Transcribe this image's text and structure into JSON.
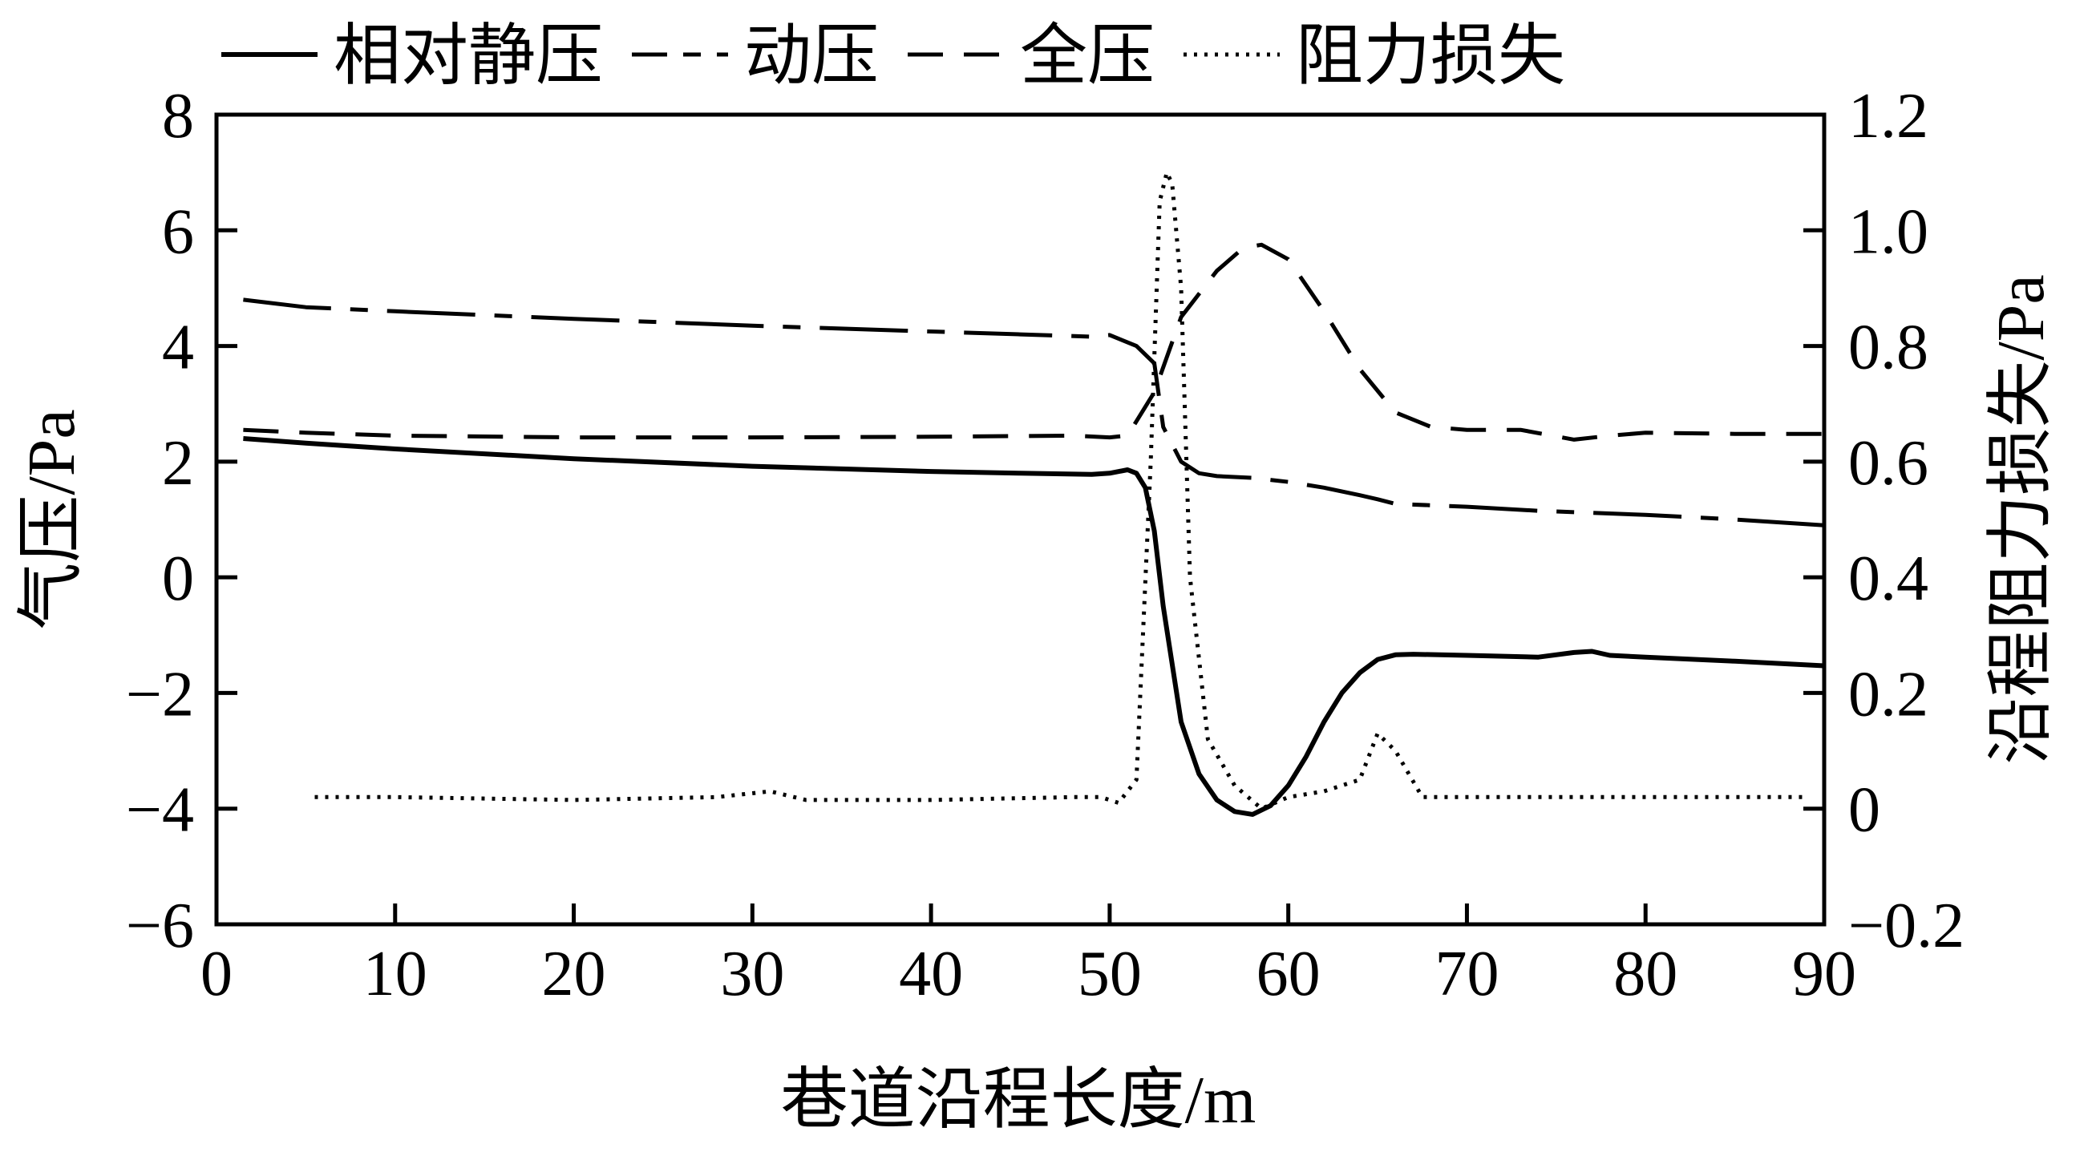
{
  "chart_data": {
    "type": "line",
    "xlabel": "巷道沿程长度/m",
    "ylabel_left": "气压/Pa",
    "ylabel_right": "沿程阻力损失/Pa",
    "xlim": [
      0,
      90
    ],
    "ylim_left": [
      -6,
      8
    ],
    "ylim_right": [
      -0.2,
      1.2
    ],
    "xticks": [
      0,
      10,
      20,
      30,
      40,
      50,
      60,
      70,
      80,
      90
    ],
    "yticks_left": [
      -6,
      -4,
      -2,
      0,
      2,
      4,
      6,
      8
    ],
    "yticks_right": [
      -0.2,
      0,
      0.2,
      0.4,
      0.6,
      0.8,
      1.0,
      1.2
    ],
    "xtick_labels": [
      "0",
      "10",
      "20",
      "30",
      "40",
      "50",
      "60",
      "70",
      "80",
      "90"
    ],
    "ytick_labels_left": [
      "−6",
      "−4",
      "−2",
      "0",
      "2",
      "4",
      "6",
      "8"
    ],
    "ytick_labels_right": [
      "−0.2",
      "0",
      "0.2",
      "0.4",
      "0.6",
      "0.8",
      "1.0",
      "1.2"
    ],
    "legend_position": "top",
    "grid": false,
    "series": [
      {
        "name": "相对静压",
        "axis": "left",
        "style": "solid",
        "x": [
          1.5,
          5,
          10,
          20,
          30,
          40,
          45,
          49,
          50,
          51,
          51.5,
          52,
          52.5,
          53,
          54,
          55,
          56,
          57,
          58,
          59,
          60,
          61,
          62,
          63,
          64,
          65,
          66,
          67,
          70,
          74,
          76,
          77,
          78,
          80,
          85,
          90
        ],
        "y": [
          2.4,
          2.32,
          2.22,
          2.05,
          1.92,
          1.83,
          1.8,
          1.78,
          1.8,
          1.86,
          1.8,
          1.55,
          0.8,
          -0.5,
          -2.5,
          -3.4,
          -3.85,
          -4.05,
          -4.1,
          -3.95,
          -3.6,
          -3.1,
          -2.5,
          -2.0,
          -1.65,
          -1.42,
          -1.34,
          -1.33,
          -1.35,
          -1.38,
          -1.3,
          -1.28,
          -1.35,
          -1.38,
          -1.45,
          -1.53
        ]
      },
      {
        "name": "动压",
        "axis": "left",
        "style": "dash-dot",
        "x": [
          1.5,
          5,
          10,
          20,
          30,
          40,
          45,
          49,
          50,
          51.5,
          52.5,
          53,
          54,
          55,
          56,
          58,
          60,
          62,
          64,
          65,
          66,
          70,
          74,
          80,
          85,
          90
        ],
        "y": [
          4.8,
          4.67,
          4.6,
          4.47,
          4.35,
          4.25,
          4.2,
          4.16,
          4.19,
          4.0,
          3.7,
          2.6,
          2.0,
          1.8,
          1.75,
          1.72,
          1.65,
          1.55,
          1.42,
          1.35,
          1.27,
          1.22,
          1.15,
          1.08,
          1.0,
          0.9
        ]
      },
      {
        "name": "全压",
        "axis": "left",
        "style": "dash",
        "x": [
          1.5,
          5,
          10,
          20,
          30,
          40,
          48,
          50,
          51,
          52.5,
          54,
          56,
          57.5,
          58.5,
          60,
          62,
          64,
          66,
          68,
          70,
          73,
          76,
          78,
          80,
          85,
          90
        ],
        "y": [
          2.55,
          2.5,
          2.45,
          2.42,
          2.42,
          2.43,
          2.45,
          2.42,
          2.45,
          3.2,
          4.5,
          5.3,
          5.7,
          5.75,
          5.5,
          4.6,
          3.6,
          2.85,
          2.6,
          2.55,
          2.55,
          2.38,
          2.45,
          2.5,
          2.48,
          2.48
        ]
      },
      {
        "name": "阻力损失",
        "axis": "right",
        "style": "dotted",
        "x": [
          5.5,
          10,
          20,
          28,
          31,
          33,
          40,
          48,
          49.5,
          50.5,
          51.5,
          52.3,
          52.8,
          53.2,
          53.5,
          54,
          54.5,
          55.5,
          57,
          58.5,
          60,
          62,
          64,
          65,
          66,
          67.5,
          70,
          75,
          80,
          85,
          89
        ],
        "y": [
          0.02,
          0.02,
          0.015,
          0.02,
          0.03,
          0.015,
          0.015,
          0.02,
          0.02,
          0.01,
          0.05,
          0.6,
          1.05,
          1.1,
          1.08,
          0.9,
          0.4,
          0.12,
          0.04,
          0.0,
          0.02,
          0.03,
          0.05,
          0.13,
          0.1,
          0.02,
          0.02,
          0.02,
          0.02,
          0.02,
          0.02
        ]
      }
    ]
  }
}
